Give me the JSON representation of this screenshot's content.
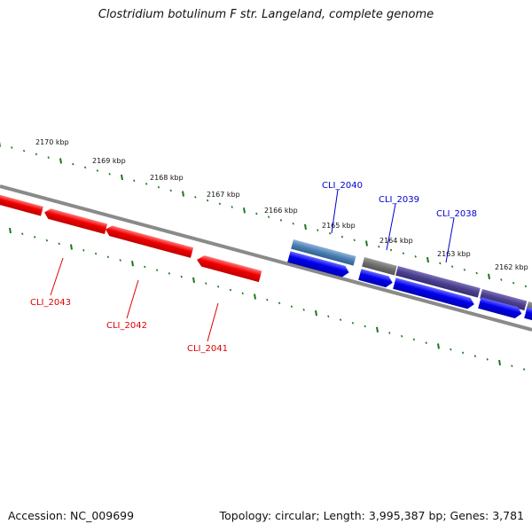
{
  "title": "Clostridium botulinum F str. Langeland, complete genome",
  "accession": "Accession: NC_009699",
  "topology": "Topology: circular; Length: 3,995,387 bp; Genes: 3,781",
  "ticks": [
    {
      "kbp": 2162,
      "label": "2162 kbp"
    },
    {
      "kbp": 2163,
      "label": "2163 kbp"
    },
    {
      "kbp": 2164,
      "label": "2164 kbp"
    },
    {
      "kbp": 2165,
      "label": "2165 kbp"
    },
    {
      "kbp": 2166,
      "label": "2166 kbp"
    },
    {
      "kbp": 2167,
      "label": "2167 kbp"
    },
    {
      "kbp": 2168,
      "label": "2168 kbp"
    },
    {
      "kbp": 2169,
      "label": "2169 kbp"
    },
    {
      "kbp": 2170,
      "label": "2170 kbp"
    }
  ],
  "gene_labels": [
    {
      "name": "CLI_2040",
      "color": "#0000cc"
    },
    {
      "name": "CLI_2039",
      "color": "#0000cc"
    },
    {
      "name": "CLI_2038",
      "color": "#0000cc"
    },
    {
      "name": "CLI_2043",
      "color": "#dd0000"
    },
    {
      "name": "CLI_2042",
      "color": "#dd0000"
    },
    {
      "name": "CLI_2041",
      "color": "#dd0000"
    }
  ],
  "colors": {
    "reverse_gene": "#ee0000",
    "forward_gene": "#0000ee",
    "forward_feature": "#4a7fb5",
    "gray_feature": "#6e6e6e",
    "purple_feature": "#4a3f8f",
    "backbone": "#8a8a8a",
    "tick": "#1a7a1a"
  }
}
